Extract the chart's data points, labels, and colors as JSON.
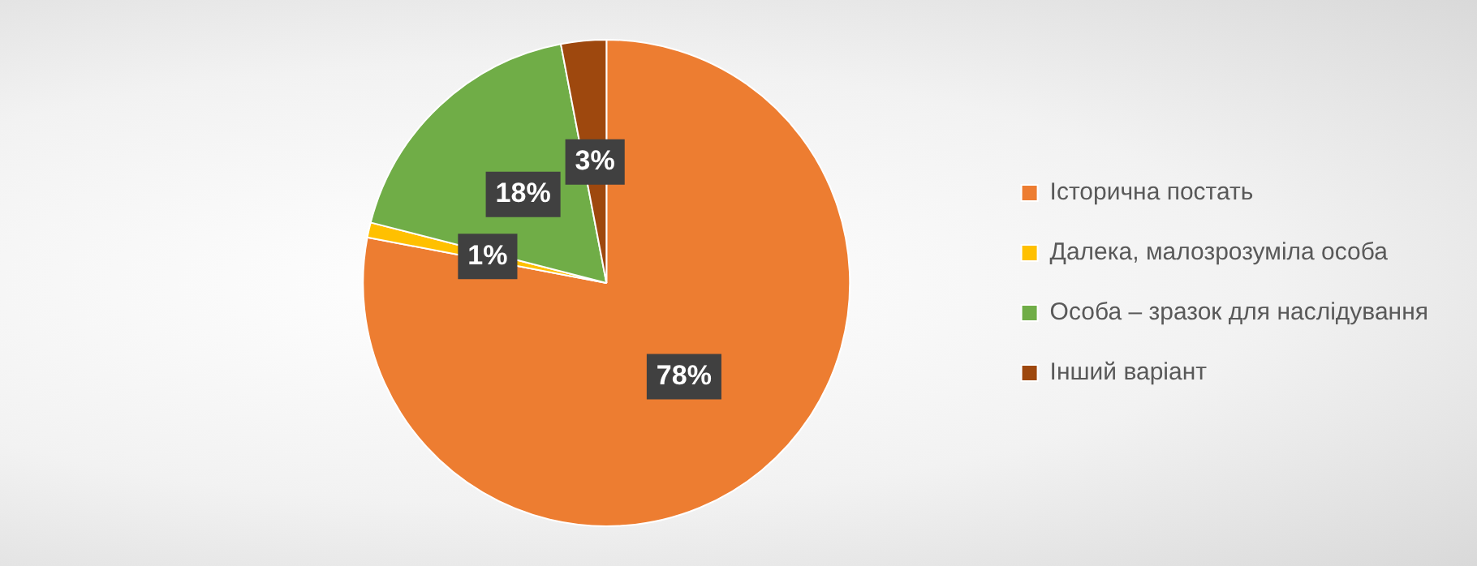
{
  "chart_data": {
    "type": "pie",
    "categories": [
      "Історична постать",
      "Далека, малозрозуміла особа",
      "Особа – зразок для наслідування",
      "Інший варіант"
    ],
    "values": [
      78,
      1,
      18,
      3
    ],
    "colors": [
      "#ed7d31",
      "#ffc000",
      "#70ad47",
      "#9e480e"
    ],
    "value_labels": [
      "78%",
      "1%",
      "18%",
      "3%"
    ],
    "legend": "right"
  }
}
